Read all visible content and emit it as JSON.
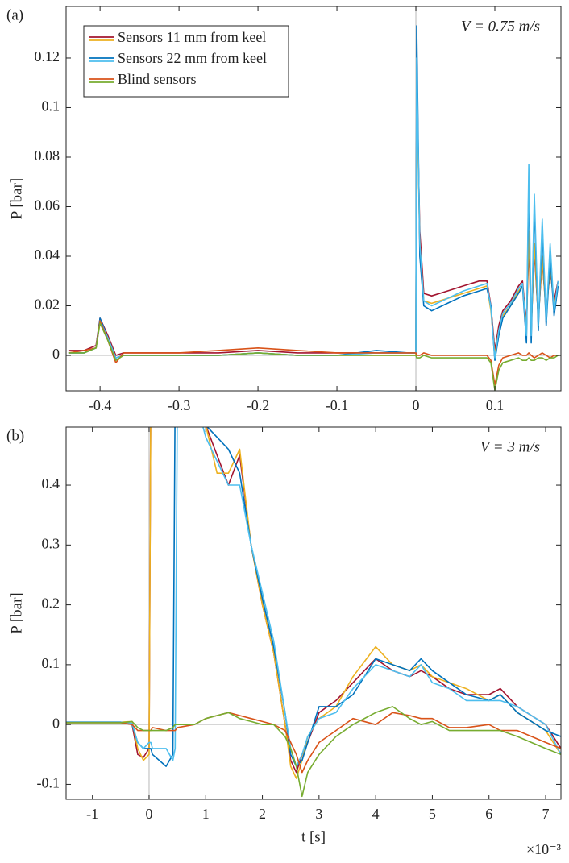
{
  "chart_data": [
    {
      "type": "line",
      "panel_label": "(a)",
      "annotation": "V = 0.75 m/s",
      "ylabel": "P [bar]",
      "xlim": [
        -0.443,
        0.1837
      ],
      "ylim": [
        -0.0143,
        0.1408
      ],
      "xticks": [
        -0.4,
        -0.3,
        -0.2,
        -0.1,
        0,
        0.1
      ],
      "yticks": [
        0,
        0.02,
        0.04,
        0.06,
        0.08,
        0.1,
        0.12
      ],
      "zero_lines": true,
      "legend": "upper left",
      "x": [
        -0.44,
        -0.42,
        -0.405,
        -0.4,
        -0.39,
        -0.38,
        -0.37,
        -0.35,
        -0.3,
        -0.25,
        -0.2,
        -0.15,
        -0.1,
        -0.05,
        -0.01,
        0,
        0.001,
        0.005,
        0.01,
        0.02,
        0.04,
        0.06,
        0.08,
        0.09,
        0.095,
        0.1,
        0.105,
        0.11,
        0.12,
        0.13,
        0.135,
        0.14,
        0.143,
        0.146,
        0.15,
        0.155,
        0.16,
        0.165,
        0.17,
        0.175,
        0.18
      ],
      "series": [
        {
          "name": "Sensors 11 mm from keel",
          "colors": [
            "#a2142f",
            "#edb120"
          ],
          "lines": [
            [
              0.002,
              0.002,
              0.004,
              0.015,
              0.008,
              0,
              0.001,
              0.001,
              0.001,
              0.001,
              0.002,
              0.001,
              0.001,
              0.001,
              0.001,
              0.001,
              0.11,
              0.05,
              0.025,
              0.024,
              0.026,
              0.028,
              0.03,
              0.03,
              0.02,
              0.002,
              0.012,
              0.018,
              0.022,
              0.028,
              0.03,
              0.012,
              0.045,
              0.012,
              0.042,
              0.015,
              0.038,
              0.018,
              0.034,
              0.022,
              0.03
            ],
            [
              0.001,
              0.001,
              0.003,
              0.014,
              0.007,
              -0.001,
              0,
              0,
              0,
              0,
              0.001,
              0,
              0,
              0,
              0,
              0,
              0.11,
              0.045,
              0.022,
              0.021,
              0.023,
              0.025,
              0.027,
              0.028,
              0.018,
              0,
              0.01,
              0.016,
              0.02,
              0.026,
              0.028,
              0.01,
              0.05,
              0.01,
              0.045,
              0.014,
              0.04,
              0.016,
              0.036,
              0.02,
              0.028
            ]
          ]
        },
        {
          "name": "Sensors 22 mm from keel",
          "colors": [
            "#0072bd",
            "#4dbeee"
          ],
          "lines": [
            [
              0.001,
              0.001,
              0.003,
              0.015,
              0.007,
              -0.001,
              0,
              0,
              0,
              0,
              0.001,
              0,
              0,
              0.002,
              0.001,
              0.001,
              0.133,
              0.04,
              0.02,
              0.018,
              0.021,
              0.024,
              0.026,
              0.027,
              0.02,
              -0.002,
              0.008,
              0.015,
              0.02,
              0.025,
              0.028,
              0.005,
              0.07,
              0.005,
              0.06,
              0.01,
              0.05,
              0.012,
              0.04,
              0.016,
              0.028
            ],
            [
              0.001,
              0.001,
              0.003,
              0.014,
              0.007,
              -0.001,
              0,
              0,
              0,
              0,
              0.001,
              0,
              0,
              0.001,
              0.001,
              0.001,
              0.12,
              0.045,
              0.022,
              0.02,
              0.023,
              0.026,
              0.028,
              0.029,
              0.019,
              -0.001,
              0.01,
              0.017,
              0.021,
              0.027,
              0.029,
              0.008,
              0.077,
              0.008,
              0.065,
              0.012,
              0.055,
              0.014,
              0.045,
              0.018,
              0.03
            ]
          ]
        },
        {
          "name": "Blind sensors",
          "colors": [
            "#d95319",
            "#77ac30"
          ],
          "lines": [
            [
              0.001,
              0.002,
              0.003,
              0.014,
              0.006,
              -0.003,
              0.001,
              0.001,
              0.001,
              0.002,
              0.003,
              0.002,
              0.001,
              0.001,
              0.001,
              0.001,
              0,
              0,
              0.001,
              0,
              0,
              0,
              0,
              0,
              -0.002,
              -0.012,
              -0.004,
              -0.001,
              0,
              0.001,
              0,
              0,
              0.001,
              0,
              -0.001,
              0,
              0.001,
              0,
              -0.001,
              0,
              0
            ],
            [
              0.001,
              0.001,
              0.003,
              0.013,
              0.006,
              -0.002,
              0,
              0,
              0,
              0,
              0.001,
              0,
              0,
              0,
              0,
              0,
              -0.001,
              -0.001,
              0,
              -0.001,
              -0.001,
              -0.001,
              -0.001,
              -0.001,
              -0.003,
              -0.014,
              -0.006,
              -0.003,
              -0.002,
              -0.001,
              -0.002,
              -0.002,
              -0.001,
              -0.002,
              -0.002,
              -0.001,
              -0.001,
              -0.002,
              -0.001,
              -0.001,
              0
            ]
          ]
        }
      ]
    },
    {
      "type": "line",
      "panel_label": "(b)",
      "annotation": "V = 3 m/s",
      "ylabel": "P [bar]",
      "xlabel": "t [s]",
      "x_exponent": "×10⁻³",
      "xlim": [
        -1.465,
        7.27
      ],
      "ylim": [
        -0.125,
        0.497
      ],
      "xticks": [
        -1,
        0,
        1,
        2,
        3,
        4,
        5,
        6,
        7
      ],
      "yticks": [
        -0.1,
        0,
        0.1,
        0.2,
        0.3,
        0.4
      ],
      "zero_lines": true,
      "x": [
        -1.5,
        -1,
        -0.5,
        -0.3,
        -0.2,
        -0.1,
        0,
        0.03,
        0.06,
        0.3,
        0.42,
        0.46,
        0.5,
        0.8,
        1,
        1.2,
        1.4,
        1.6,
        1.8,
        2,
        2.2,
        2.4,
        2.5,
        2.6,
        2.7,
        2.8,
        3,
        3.3,
        3.6,
        4,
        4.3,
        4.6,
        4.8,
        5,
        5.3,
        5.6,
        6,
        6.2,
        6.5,
        7,
        7.27
      ],
      "series": [
        {
          "colors": [
            "#a2142f",
            "#edb120"
          ],
          "lines": [
            [
              0.004,
              0.004,
              0.004,
              0,
              -0.05,
              -0.055,
              -0.04,
              0.55,
              0.55,
              0.55,
              0.55,
              0.55,
              0.55,
              0.55,
              0.5,
              0.45,
              0.4,
              0.45,
              0.3,
              0.2,
              0.12,
              0,
              -0.06,
              -0.08,
              -0.05,
              -0.03,
              0.02,
              0.04,
              0.07,
              0.11,
              0.09,
              0.08,
              0.09,
              0.08,
              0.06,
              0.05,
              0.05,
              0.06,
              0.03,
              0,
              -0.04
            ],
            [
              0.004,
              0.004,
              0.004,
              0.005,
              -0.04,
              -0.06,
              -0.05,
              0.55,
              0.55,
              0.55,
              0.55,
              0.55,
              0.55,
              0.55,
              0.5,
              0.42,
              0.42,
              0.46,
              0.3,
              0.2,
              0.12,
              0,
              -0.07,
              -0.09,
              -0.06,
              -0.02,
              0.01,
              0.03,
              0.08,
              0.13,
              0.1,
              0.09,
              0.1,
              0.08,
              0.07,
              0.06,
              0.04,
              0.05,
              0.02,
              -0.01,
              -0.05
            ]
          ]
        },
        {
          "colors": [
            "#0072bd",
            "#4dbeee"
          ],
          "lines": [
            [
              0.004,
              0.004,
              0.004,
              0,
              -0.03,
              -0.04,
              -0.04,
              -0.04,
              -0.05,
              -0.07,
              -0.05,
              0.55,
              0.55,
              0.55,
              0.5,
              0.48,
              0.46,
              0.42,
              0.3,
              0.21,
              0.13,
              0.02,
              -0.05,
              -0.07,
              -0.06,
              -0.03,
              0.03,
              0.03,
              0.05,
              0.11,
              0.1,
              0.09,
              0.11,
              0.09,
              0.07,
              0.05,
              0.04,
              0.05,
              0.02,
              -0.01,
              -0.02
            ],
            [
              0.004,
              0.004,
              0.004,
              0.002,
              -0.03,
              -0.04,
              -0.03,
              -0.03,
              -0.04,
              -0.04,
              -0.06,
              -0.04,
              0.55,
              0.55,
              0.48,
              0.44,
              0.4,
              0.4,
              0.3,
              0.22,
              0.14,
              0.02,
              -0.04,
              -0.07,
              -0.05,
              -0.02,
              0.01,
              0.02,
              0.06,
              0.1,
              0.09,
              0.08,
              0.1,
              0.07,
              0.06,
              0.04,
              0.04,
              0.04,
              0.03,
              0,
              -0.05
            ]
          ]
        },
        {
          "colors": [
            "#d95319",
            "#77ac30"
          ],
          "lines": [
            [
              0.003,
              0.003,
              0.003,
              0,
              -0.01,
              -0.01,
              -0.01,
              -0.01,
              -0.005,
              -0.01,
              -0.01,
              -0.01,
              -0.005,
              0,
              0.01,
              0.015,
              0.02,
              0.015,
              0.01,
              0.005,
              0,
              -0.01,
              -0.03,
              -0.05,
              -0.08,
              -0.06,
              -0.03,
              -0.01,
              0.01,
              0,
              0.02,
              0.015,
              0.01,
              0.01,
              -0.005,
              -0.005,
              0,
              -0.01,
              -0.01,
              -0.03,
              -0.04
            ],
            [
              0.003,
              0.003,
              0.003,
              0.005,
              -0.005,
              -0.01,
              -0.01,
              -0.01,
              -0.01,
              -0.01,
              -0.005,
              0,
              0,
              0,
              0.01,
              0.015,
              0.02,
              0.01,
              0.005,
              0,
              0,
              -0.02,
              -0.04,
              -0.07,
              -0.12,
              -0.08,
              -0.05,
              -0.02,
              0,
              0.02,
              0.03,
              0.01,
              0,
              0.005,
              -0.01,
              -0.01,
              -0.01,
              -0.01,
              -0.02,
              -0.04,
              -0.05
            ]
          ]
        }
      ]
    }
  ]
}
